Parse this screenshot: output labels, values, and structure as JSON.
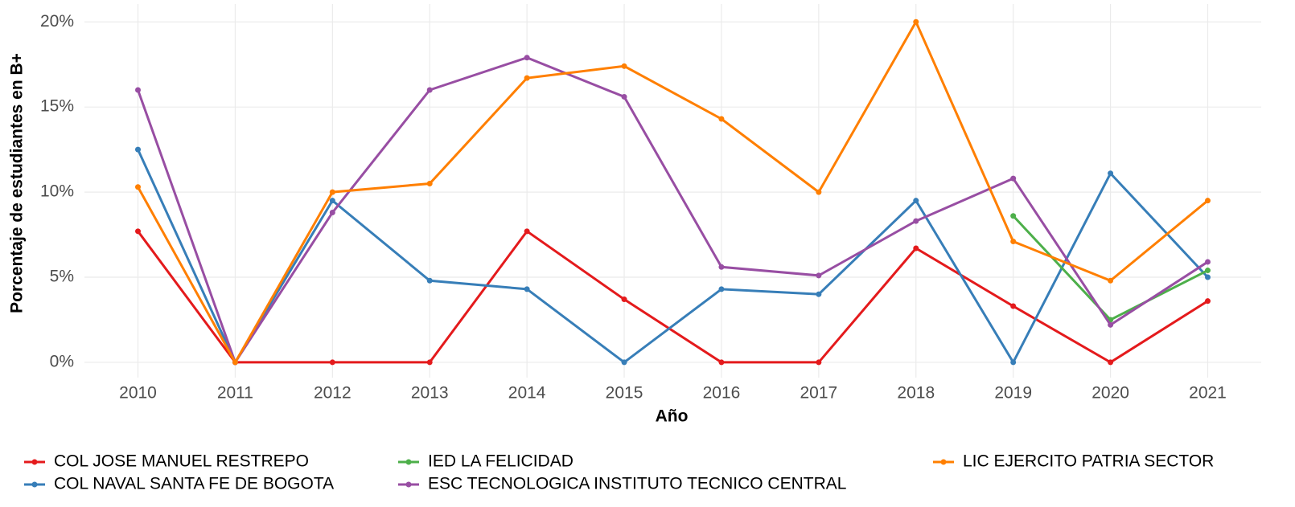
{
  "chart_data": {
    "type": "line",
    "x_label": "Año",
    "y_label": "Porcentaje de estudiantes en B+",
    "x": [
      2010,
      2011,
      2012,
      2013,
      2014,
      2015,
      2016,
      2017,
      2018,
      2019,
      2020,
      2021
    ],
    "xlim": [
      2009.45,
      2021.55
    ],
    "xticks": [
      2010,
      2011,
      2012,
      2013,
      2014,
      2015,
      2016,
      2017,
      2018,
      2019,
      2020,
      2021
    ],
    "ylim": [
      -0.9,
      21.05
    ],
    "yticks": [
      {
        "value": 0,
        "label": "0%"
      },
      {
        "value": 5,
        "label": "5%"
      },
      {
        "value": 10,
        "label": "10%"
      },
      {
        "value": 15,
        "label": "15%"
      },
      {
        "value": 20,
        "label": "20%"
      }
    ],
    "grid": true,
    "legend_position": "bottom",
    "series": [
      {
        "name": "COL JOSE MANUEL RESTREPO",
        "color": "#e41a1c",
        "values": [
          7.7,
          0,
          0,
          0,
          7.7,
          3.7,
          0,
          0,
          6.7,
          3.3,
          0,
          3.6
        ]
      },
      {
        "name": "COL NAVAL SANTA FE DE BOGOTA",
        "color": "#377eb8",
        "values": [
          12.5,
          0,
          9.5,
          4.8,
          4.3,
          0,
          4.3,
          4.0,
          9.5,
          0,
          11.1,
          5.0
        ]
      },
      {
        "name": "IED LA FELICIDAD",
        "color": "#4daf4a",
        "values": [
          null,
          null,
          null,
          null,
          null,
          null,
          null,
          null,
          null,
          8.6,
          2.5,
          5.4
        ]
      },
      {
        "name": "ESC TECNOLOGICA INSTITUTO TECNICO CENTRAL",
        "color": "#984ea3",
        "values": [
          16.0,
          0,
          8.8,
          16.0,
          17.9,
          15.6,
          5.6,
          5.1,
          8.3,
          10.8,
          2.2,
          5.9
        ]
      },
      {
        "name": "LIC EJERCITO PATRIA SECTOR",
        "color": "#ff7f00",
        "values": [
          10.3,
          0,
          10.0,
          10.5,
          16.7,
          17.4,
          14.3,
          10.0,
          20.0,
          7.1,
          4.8,
          9.5
        ]
      }
    ]
  }
}
